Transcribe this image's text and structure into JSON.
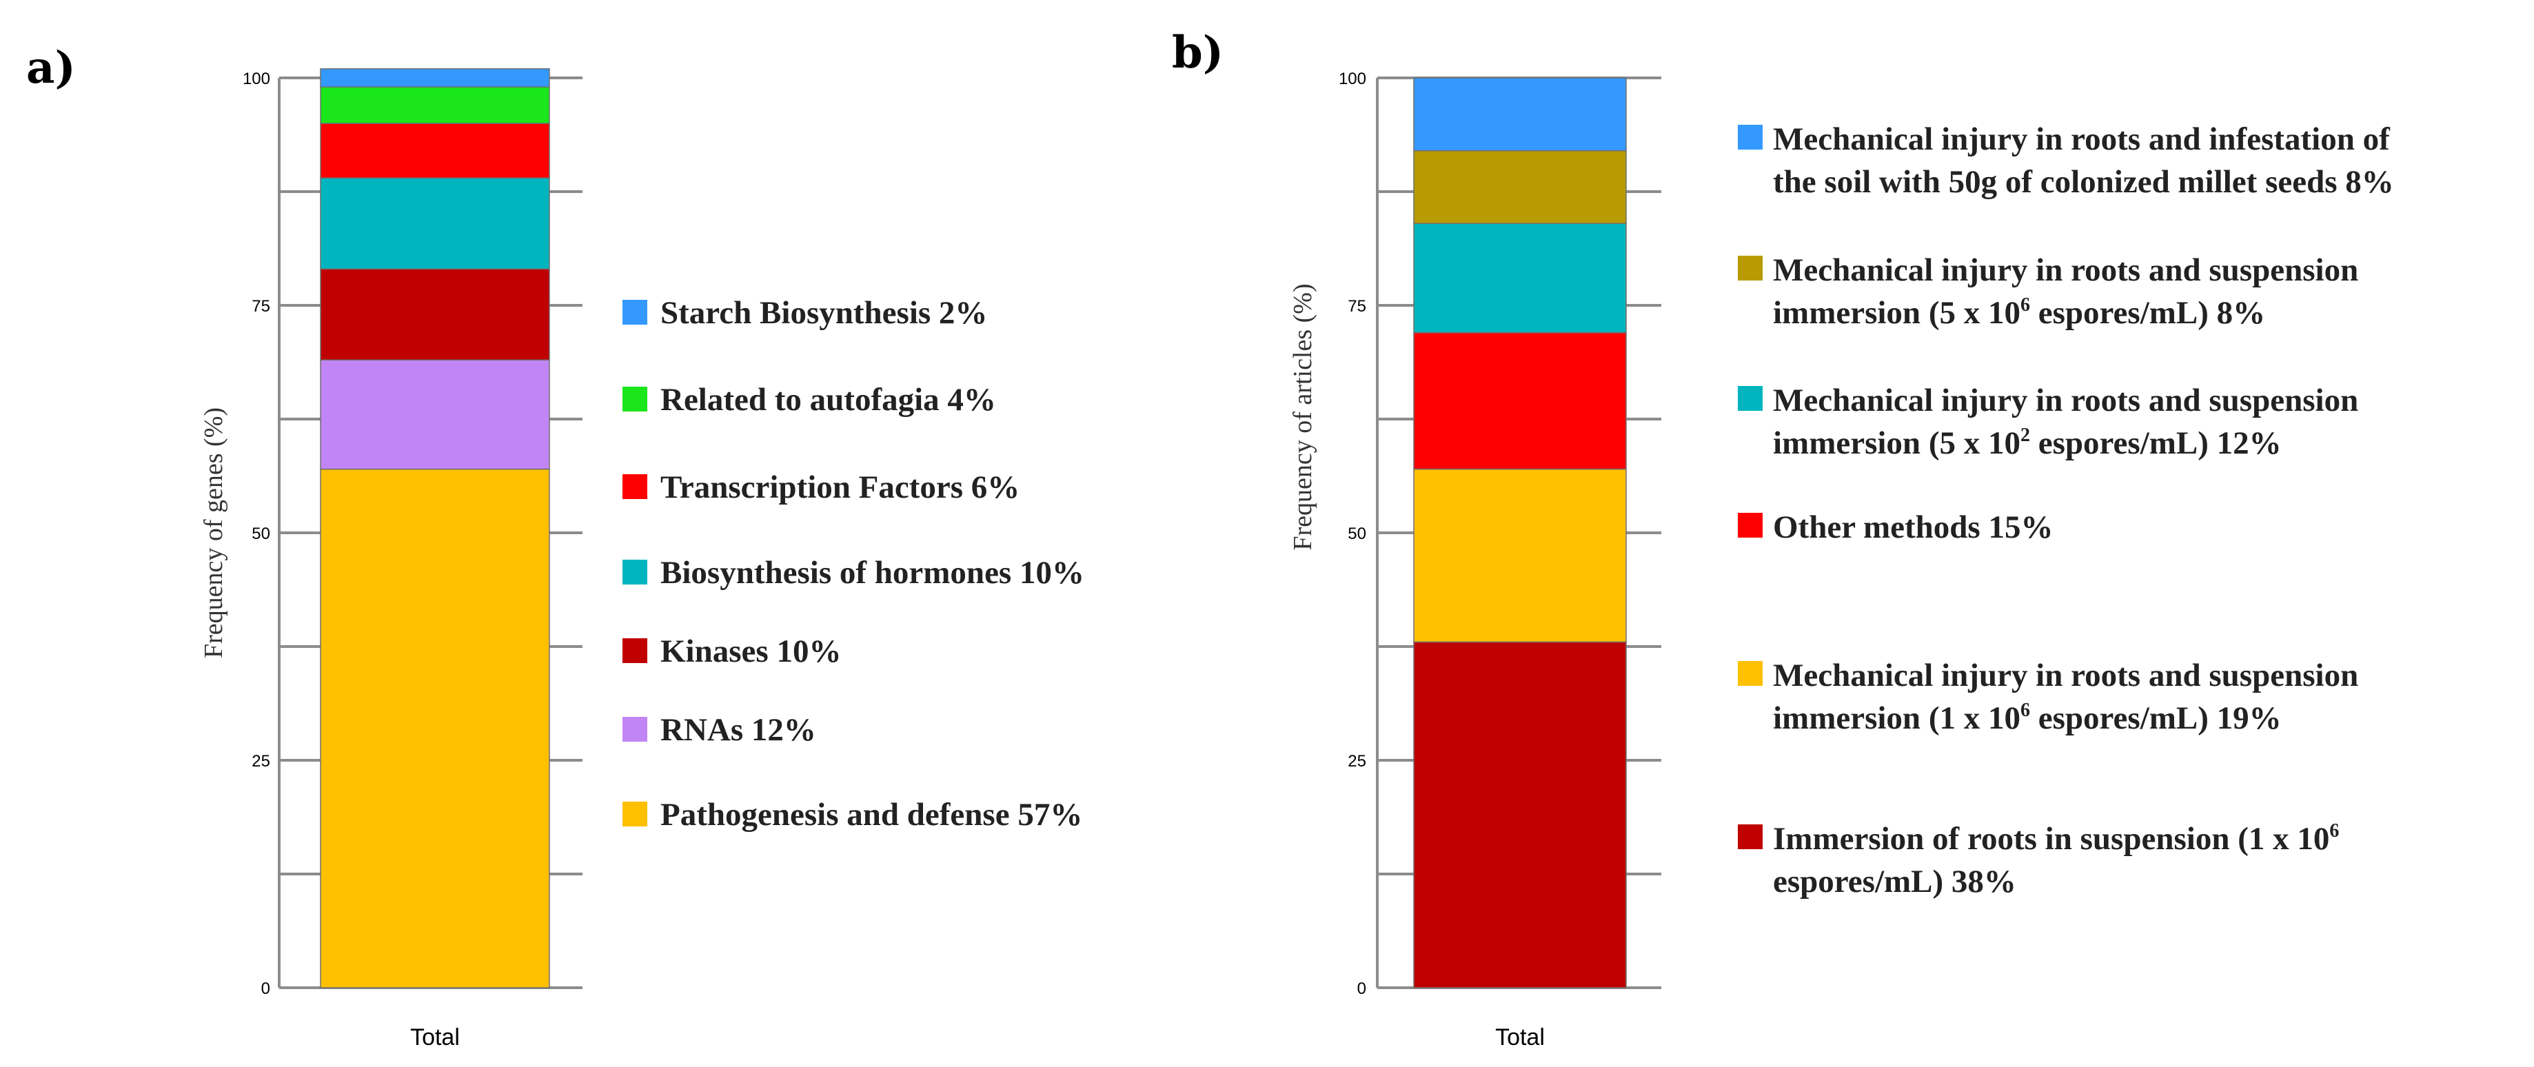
{
  "chart_data": [
    {
      "type": "bar",
      "stacked": true,
      "panel_label": "a)",
      "categories": [
        "Total"
      ],
      "ylabel": "Frequency of genes (%)",
      "ylim": [
        0,
        100
      ],
      "yticks": [
        0,
        25,
        50,
        75,
        100
      ],
      "grid": false,
      "legend_position": "right",
      "series": [
        {
          "name": "Pathogenesis and defense 57%",
          "values": [
            57
          ],
          "color": "#FFC000"
        },
        {
          "name": "RNAs 12%",
          "values": [
            12
          ],
          "color": "#C285F5"
        },
        {
          "name": "Kinases 10%",
          "values": [
            10
          ],
          "color": "#C00000"
        },
        {
          "name": "Biosynthesis of hormones 10%",
          "values": [
            10
          ],
          "color": "#00B5BE"
        },
        {
          "name": "Transcription Factors 6%",
          "values": [
            6
          ],
          "color": "#FF0000"
        },
        {
          "name": "Related to autofagia 4%",
          "values": [
            4
          ],
          "color": "#1BE61B"
        },
        {
          "name": "Starch Biosynthesis 2%",
          "values": [
            2
          ],
          "color": "#3399FF"
        }
      ]
    },
    {
      "type": "bar",
      "stacked": true,
      "panel_label": "b)",
      "categories": [
        "Total"
      ],
      "ylabel": "Frequency of articles (%)",
      "ylim": [
        0,
        100
      ],
      "yticks": [
        0,
        25,
        50,
        75,
        100
      ],
      "grid": false,
      "legend_position": "right",
      "series": [
        {
          "name": "Immersion of roots in suspension (1 x  10⁶ espores/mL) 38%",
          "lines": [
            [
              "Immersion of roots in suspension (1 x  10",
              "6",
              ""
            ],
            [
              "espores/mL) 38%"
            ]
          ],
          "values": [
            38
          ],
          "color": "#C00000"
        },
        {
          "name": "Mechanical injury in roots and suspension immersion (1 x 10⁶ espores/mL) 19%",
          "lines": [
            [
              "Mechanical injury in roots and suspension"
            ],
            [
              "immersion (1 x 10",
              "6",
              " espores/mL) 19%"
            ]
          ],
          "values": [
            19
          ],
          "color": "#FFC000"
        },
        {
          "name": "Other methods 15%",
          "lines": [
            [
              "Other methods 15%"
            ]
          ],
          "values": [
            15
          ],
          "color": "#FF0000"
        },
        {
          "name": "Mechanical injury in roots and suspension immersion (5 x 10² espores/mL) 12%",
          "lines": [
            [
              "Mechanical injury in roots and suspension"
            ],
            [
              "immersion (5 x 10",
              "2",
              " espores/mL) 12%"
            ]
          ],
          "values": [
            12
          ],
          "color": "#00B5BE"
        },
        {
          "name": "Mechanical injury in roots and suspension immersion (5 x 10⁶ espores/mL) 8%",
          "lines": [
            [
              "Mechanical injury in roots and suspension"
            ],
            [
              "immersion (5 x 10",
              "6",
              " espores/mL) 8%"
            ]
          ],
          "values": [
            8
          ],
          "color": "#B89B00"
        },
        {
          "name": "Mechanical injury in roots and infestation of the soil with 50g of colonized millet seeds 8%",
          "lines": [
            [
              "Mechanical injury in roots and infestation of"
            ],
            [
              "the soil with 50g of colonized millet seeds 8%"
            ]
          ],
          "values": [
            8
          ],
          "color": "#3399FF"
        }
      ]
    }
  ]
}
